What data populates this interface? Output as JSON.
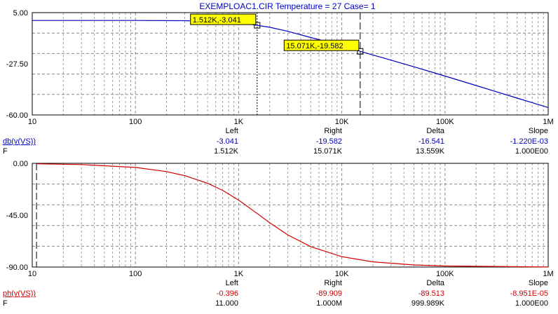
{
  "colors": {
    "magnitude": "#0000c0",
    "phase": "#d00000",
    "cursor_bg": "#ffff00",
    "grid": "#888888",
    "text": "#000000",
    "title": "#0000c0"
  },
  "chart_data": [
    {
      "type": "line",
      "title": "EXEMPLOAC1.CIR Temperature = 27 Case= 1",
      "xscale": "log",
      "xlim": [
        10,
        1000000
      ],
      "ylim": [
        -60,
        5
      ],
      "x_ticks": [
        "10",
        "100",
        "1K",
        "10K",
        "100K",
        "1M"
      ],
      "y_ticks": [
        "5.00",
        "-27.50",
        "-60.00"
      ],
      "grid": true,
      "series": [
        {
          "name": "db(v(VS))",
          "color": "#0000c0",
          "x": [
            10,
            100,
            300,
            700,
            1000,
            1512,
            2000,
            3000,
            5000,
            7000,
            10000,
            15071,
            20000,
            30000,
            50000,
            100000,
            200000,
            500000,
            1000000
          ],
          "y": [
            0.0,
            0.0,
            -0.1,
            -0.6,
            -1.3,
            -3.041,
            -4.3,
            -6.9,
            -10.8,
            -13.3,
            -16.2,
            -19.582,
            -21.9,
            -25.2,
            -29.4,
            -35.3,
            -41.3,
            -49.3,
            -55.3
          ]
        }
      ],
      "cursors": [
        {
          "x": 1512,
          "y": -3.041,
          "label": "1.512K,-3.041",
          "style": "dotted"
        },
        {
          "x": 15071,
          "y": -19.582,
          "label": "15.071K,-19.582",
          "style": "dashed"
        }
      ],
      "readout": {
        "headers": [
          "Left",
          "Right",
          "Delta",
          "Slope"
        ],
        "rows": [
          {
            "label": "db(v(VS))",
            "values": [
              "-3.041",
              "-19.582",
              "-16.541",
              "-1.220E-03"
            ]
          },
          {
            "label": "F",
            "values": [
              "1.512K",
              "15.071K",
              "13.559K",
              "1.000E00"
            ]
          }
        ]
      }
    },
    {
      "type": "line",
      "xscale": "log",
      "xlim": [
        10,
        1000000
      ],
      "ylim": [
        -90,
        0
      ],
      "x_ticks": [
        "10",
        "100",
        "1K",
        "10K",
        "100K",
        "1M"
      ],
      "y_ticks": [
        "0.00",
        "-45.00",
        "-90.00"
      ],
      "grid": true,
      "series": [
        {
          "name": "ph(v(VS))",
          "color": "#d00000",
          "x": [
            11,
            30,
            100,
            200,
            300,
            500,
            700,
            1000,
            1500,
            2000,
            3000,
            5000,
            10000,
            20000,
            50000,
            100000,
            1000000
          ],
          "y": [
            -0.396,
            -1.1,
            -3.6,
            -7.2,
            -10.7,
            -17.3,
            -23.5,
            -31.9,
            -43.3,
            -51.5,
            -62.1,
            -72.3,
            -81.0,
            -85.5,
            -88.2,
            -89.1,
            -89.909
          ]
        }
      ],
      "cursors": [
        {
          "x": 11,
          "style": "dashed"
        },
        {
          "x": 1000000,
          "style": "dotted"
        }
      ],
      "readout": {
        "headers": [
          "Left",
          "Right",
          "Delta",
          "Slope"
        ],
        "rows": [
          {
            "label": "ph(v(VS))",
            "values": [
              "-0.396",
              "-89.909",
              "-89.513",
              "-8.951E-05"
            ]
          },
          {
            "label": "F",
            "values": [
              "11.000",
              "1.000M",
              "999.989K",
              "1.000E00"
            ]
          }
        ]
      }
    }
  ]
}
